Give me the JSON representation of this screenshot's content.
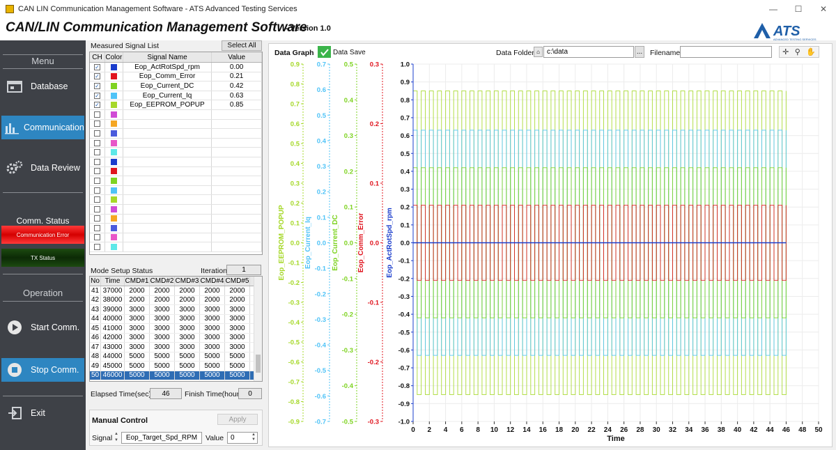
{
  "window": {
    "title": "CAN LIN Communication Management Software  - ATS Advanced Testing Services",
    "minimize_glyph": "—",
    "maximize_glyph": "☐",
    "close_glyph": "✕"
  },
  "header": {
    "title": "CAN/LIN Communication Management Software",
    "version": "- Version 1.0",
    "logo_text": "ATS",
    "logo_sub": "ADVANCED TESTING SERVICES"
  },
  "sidebar": {
    "menu_label": "Menu",
    "items": [
      {
        "label": "Database",
        "icon": "database-icon"
      },
      {
        "label": "Communication",
        "icon": "bar-chart-icon"
      },
      {
        "label": "Data Review",
        "icon": "gears-icon"
      }
    ],
    "status_label": "Comm. Status",
    "comm_error": "Communication Error",
    "tx_status": "TX Status",
    "operation_label": "Operation",
    "start": "Start Comm.",
    "stop": "Stop Comm.",
    "exit": "Exit"
  },
  "signal_list": {
    "title": "Measured Signal List",
    "select_all": "Select All",
    "headers": [
      "CH",
      "Color",
      "Signal Name",
      "Value"
    ],
    "rows": [
      {
        "checked": true,
        "color": "#1a3ccc",
        "name": "Eop_ActRotSpd_rpm",
        "value": "0.00"
      },
      {
        "checked": true,
        "color": "#e0141e",
        "name": "Eop_Comm_Error",
        "value": "0.21"
      },
      {
        "checked": true,
        "color": "#7ed321",
        "name": "Eop_Current_DC",
        "value": "0.42"
      },
      {
        "checked": true,
        "color": "#4fc3f7",
        "name": "Eop_Current_Iq",
        "value": "0.63"
      },
      {
        "checked": true,
        "color": "#a6d82a",
        "name": "Eop_EEPROM_POPUP",
        "value": "0.85"
      },
      {
        "checked": false,
        "color": "#d04bd6",
        "name": "",
        "value": ""
      },
      {
        "checked": false,
        "color": "#f5a623",
        "name": "",
        "value": ""
      },
      {
        "checked": false,
        "color": "#4a5bdc",
        "name": "",
        "value": ""
      },
      {
        "checked": false,
        "color": "#e857c8",
        "name": "",
        "value": ""
      },
      {
        "checked": false,
        "color": "#5ee8e8",
        "name": "",
        "value": ""
      },
      {
        "checked": false,
        "color": "#1a3ccc",
        "name": "",
        "value": ""
      },
      {
        "checked": false,
        "color": "#e0141e",
        "name": "",
        "value": ""
      },
      {
        "checked": false,
        "color": "#7ed321",
        "name": "",
        "value": ""
      },
      {
        "checked": false,
        "color": "#4fc3f7",
        "name": "",
        "value": ""
      },
      {
        "checked": false,
        "color": "#a6d82a",
        "name": "",
        "value": ""
      },
      {
        "checked": false,
        "color": "#d04bd6",
        "name": "",
        "value": ""
      },
      {
        "checked": false,
        "color": "#f5a623",
        "name": "",
        "value": ""
      },
      {
        "checked": false,
        "color": "#4a5bdc",
        "name": "",
        "value": ""
      },
      {
        "checked": false,
        "color": "#e857c8",
        "name": "",
        "value": ""
      },
      {
        "checked": false,
        "color": "#5ee8e8",
        "name": "",
        "value": ""
      }
    ]
  },
  "mode_setup": {
    "title": "Mode Setup Status",
    "iteration_label": "Iteration",
    "iteration_value": "1",
    "headers": [
      "No",
      "Time",
      "CMD#1",
      "CMD#2",
      "CMD#3",
      "CMD#4",
      "CMD#5"
    ],
    "rows": [
      [
        "41",
        "37000",
        "2000",
        "2000",
        "2000",
        "2000",
        "2000"
      ],
      [
        "42",
        "38000",
        "2000",
        "2000",
        "2000",
        "2000",
        "2000"
      ],
      [
        "43",
        "39000",
        "3000",
        "3000",
        "3000",
        "3000",
        "3000"
      ],
      [
        "44",
        "40000",
        "3000",
        "3000",
        "3000",
        "3000",
        "3000"
      ],
      [
        "45",
        "41000",
        "3000",
        "3000",
        "3000",
        "3000",
        "3000"
      ],
      [
        "46",
        "42000",
        "3000",
        "3000",
        "3000",
        "3000",
        "3000"
      ],
      [
        "47",
        "43000",
        "3000",
        "3000",
        "3000",
        "3000",
        "3000"
      ],
      [
        "48",
        "44000",
        "5000",
        "5000",
        "5000",
        "5000",
        "5000"
      ],
      [
        "49",
        "45000",
        "5000",
        "5000",
        "5000",
        "5000",
        "5000"
      ],
      [
        "50",
        "46000",
        "5000",
        "5000",
        "5000",
        "5000",
        "5000"
      ]
    ],
    "selected_row": 9,
    "elapsed_label": "Elapsed Time(sec)",
    "elapsed_value": "46",
    "finish_label": "Finish Time(hour)",
    "finish_value": "0"
  },
  "manual_control": {
    "title": "Manual Control",
    "apply": "Apply",
    "signal_label": "Signal",
    "signal_value": "Eop_Target_Spd_RPM",
    "value_label": "Value",
    "value_value": "0"
  },
  "graph": {
    "title": "Data Graph",
    "data_save_label": "Data Save",
    "data_save_checked": true,
    "folder_label": "Data Folder",
    "folder_value": "c:\\data",
    "browse": "...",
    "filename_label": "Filename",
    "filename_value": ""
  },
  "chart_data": {
    "type": "line",
    "xlabel": "Time",
    "xlim": [
      0,
      50
    ],
    "x_ticks": [
      0,
      2,
      4,
      6,
      8,
      10,
      12,
      14,
      16,
      18,
      20,
      22,
      24,
      26,
      28,
      30,
      32,
      34,
      36,
      38,
      40,
      42,
      44,
      46,
      48,
      50
    ],
    "x_data_end": 46,
    "y_axes": [
      {
        "name": "Eop_EEPROM_POPUP",
        "color": "#a6d82a",
        "ylim": [
          -0.9,
          0.9
        ],
        "ticks": [
          "0.9",
          "0.8",
          "0.7",
          "0.6",
          "0.5",
          "0.4",
          "0.3",
          "0.2",
          "0.1",
          "0.0",
          "-0.1",
          "-0.2",
          "-0.3",
          "-0.4",
          "-0.5",
          "-0.6",
          "-0.7",
          "-0.8",
          "-0.9"
        ]
      },
      {
        "name": "Eop_Current_Iq",
        "color": "#4fc3f7",
        "ylim": [
          -0.7,
          0.7
        ],
        "ticks": [
          "0.7",
          "0.6",
          "0.5",
          "0.4",
          "0.3",
          "0.2",
          "0.1",
          "0.0",
          "-0.1",
          "-0.2",
          "-0.3",
          "-0.4",
          "-0.5",
          "-0.6",
          "-0.7"
        ]
      },
      {
        "name": "Eop_Current_DC",
        "color": "#7ed321",
        "ylim": [
          -0.5,
          0.5
        ],
        "ticks": [
          "0.5",
          "0.4",
          "0.3",
          "0.2",
          "0.1",
          "0.0",
          "-0.1",
          "-0.2",
          "-0.3",
          "-0.4",
          "-0.5"
        ]
      },
      {
        "name": "Eop_Comm_Error",
        "color": "#e0141e",
        "ylim": [
          -0.3,
          0.3
        ],
        "ticks": [
          "0.3",
          "0.2",
          "0.1",
          "0.0",
          "-0.1",
          "-0.2",
          "-0.3"
        ]
      },
      {
        "name": "Eop_ActRotSpd_rpm",
        "color": "#1a3ccc",
        "ylim": [
          -1.0,
          1.0
        ],
        "ticks": [
          "1.0",
          "0.9",
          "0.8",
          "0.7",
          "0.6",
          "0.5",
          "0.4",
          "0.3",
          "0.2",
          "0.1",
          "0.0",
          "-0.1",
          "-0.2",
          "-0.3",
          "-0.4",
          "-0.5",
          "-0.6",
          "-0.7",
          "-0.8",
          "-0.9",
          "-1.0"
        ]
      }
    ],
    "series": [
      {
        "name": "Eop_ActRotSpd_rpm",
        "color": "#1a3ccc",
        "amplitude": 0.0
      },
      {
        "name": "Eop_Comm_Error",
        "color": "#e0141e",
        "amplitude": 0.21
      },
      {
        "name": "Eop_Current_DC",
        "color": "#7ed321",
        "amplitude": 0.42
      },
      {
        "name": "Eop_Current_Iq",
        "color": "#4fc3f7",
        "amplitude": 0.63
      },
      {
        "name": "Eop_EEPROM_POPUP",
        "color": "#a6d82a",
        "amplitude": 0.85
      }
    ],
    "grid": true
  }
}
